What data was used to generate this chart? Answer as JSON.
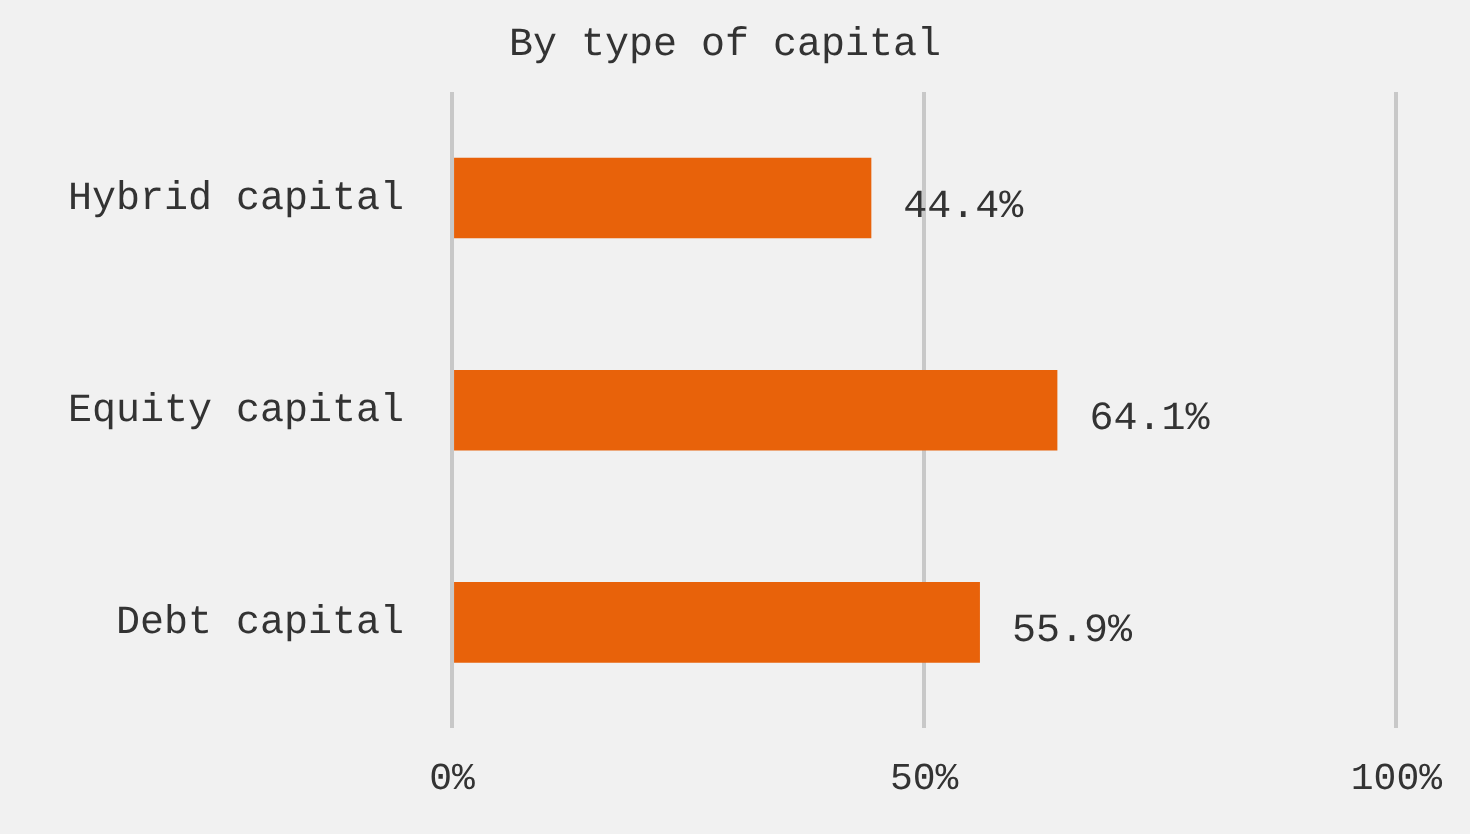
{
  "chart_data": {
    "type": "bar",
    "orientation": "horizontal",
    "title": "By type of capital",
    "categories": [
      "Hybrid capital",
      "Equity capital",
      "Debt capital"
    ],
    "values": [
      44.4,
      64.1,
      55.9
    ],
    "color": "#e8620a",
    "value_labels": [
      "44.4%",
      "64.1%",
      "55.9%"
    ],
    "xlim": [
      0,
      100
    ],
    "xticks": [
      {
        "value": 0,
        "label": "0%"
      },
      {
        "value": 50,
        "label": "50%"
      },
      {
        "value": 100,
        "label": "100%"
      }
    ],
    "grid": "x",
    "legend": false
  }
}
